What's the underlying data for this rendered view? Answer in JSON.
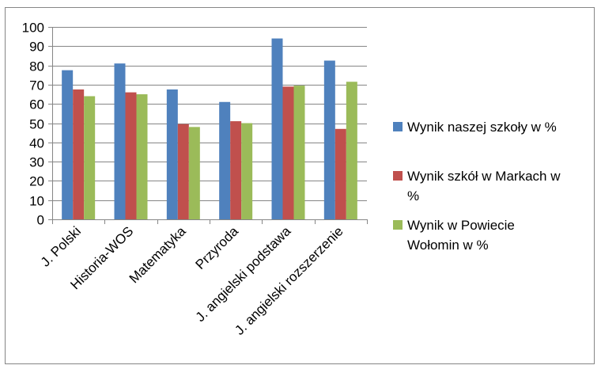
{
  "chart_data": {
    "type": "bar",
    "categories": [
      "J. Polski",
      "Historia-WOS",
      "Matematyka",
      "Przyroda",
      "J. angielski podstawa",
      "J. angielski rozszerzenie"
    ],
    "series": [
      {
        "name": "Wynik naszej szkoły w %",
        "color": "#4f81bd",
        "values": [
          77.5,
          81,
          67.5,
          61,
          94,
          82.5
        ]
      },
      {
        "name": "Wynik szkół w Markach w %",
        "color": "#c0504d",
        "values": [
          67.5,
          66,
          49.5,
          51,
          69,
          47
        ]
      },
      {
        "name": "Wynik w Powiecie Wołomin w %",
        "color": "#9bbb59",
        "values": [
          64,
          65,
          48,
          50,
          69.5,
          71.5
        ]
      }
    ],
    "ylim": [
      0,
      100
    ],
    "yticks": [
      0,
      10,
      20,
      30,
      40,
      50,
      60,
      70,
      80,
      90,
      100
    ],
    "grid": true,
    "legend_position": "right",
    "legend_lines": [
      [
        "Wynik naszej szkoły w %"
      ],
      [
        "Wynik szkół w Markach w",
        "%"
      ],
      [
        "Wynik w Powiecie",
        "Wołomin w %"
      ]
    ]
  }
}
